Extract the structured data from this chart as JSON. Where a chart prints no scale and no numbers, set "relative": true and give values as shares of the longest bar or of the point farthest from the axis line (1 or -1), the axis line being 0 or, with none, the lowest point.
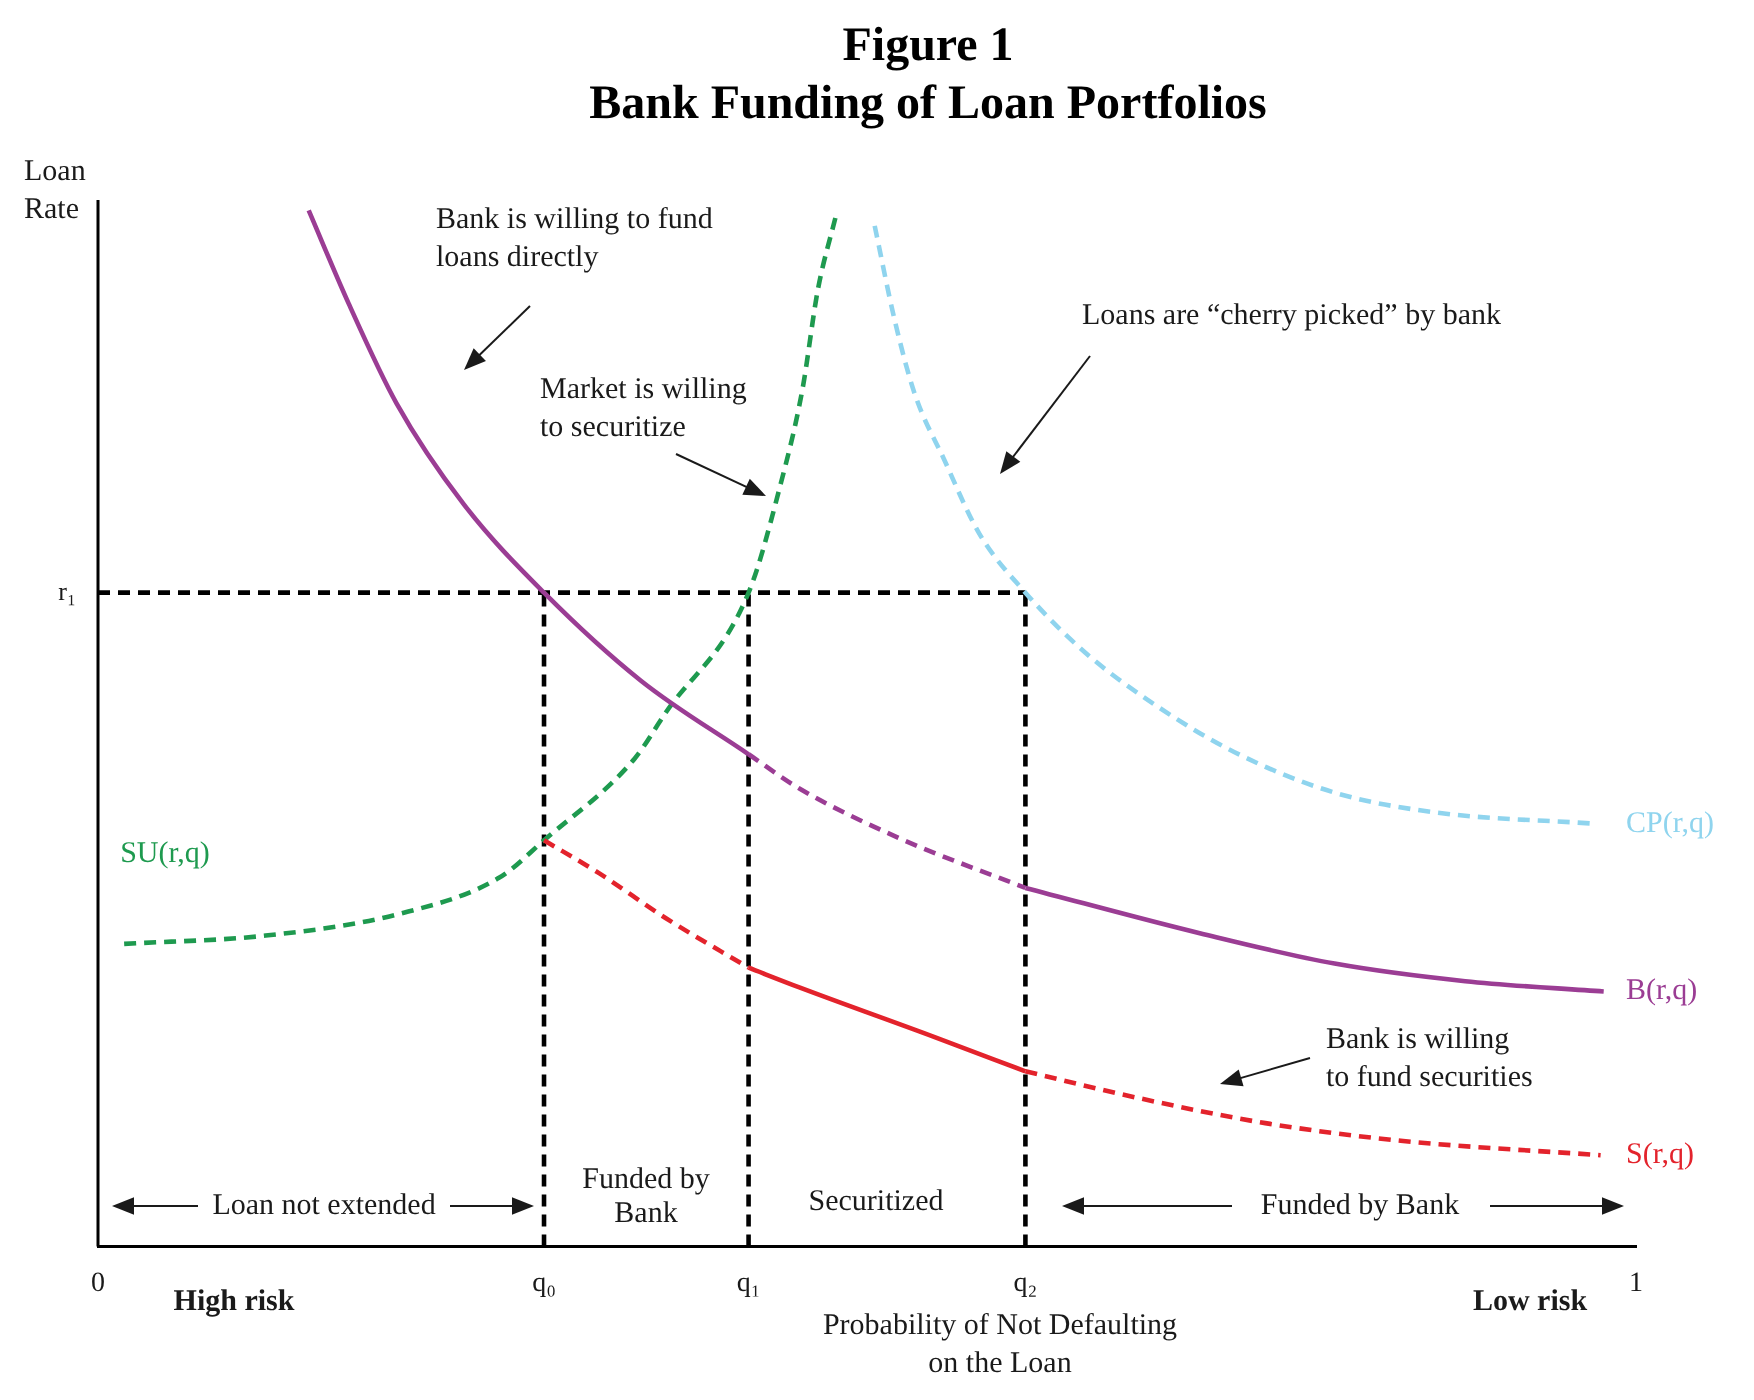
{
  "chart_data": {
    "type": "line",
    "title": "Figure 1",
    "subtitle": "Bank Funding of Loan Portfolios",
    "xlabel": "Probability of Not Defaulting on the Loan",
    "ylabel": "Loan Rate",
    "relative": true,
    "xlim": [
      0,
      1
    ],
    "xticks": [
      0,
      {
        "value": 0.29,
        "label": "q₀"
      },
      {
        "value": 0.423,
        "label": "q₁"
      },
      {
        "value": 0.603,
        "label": "q₂"
      },
      1
    ],
    "legend": false,
    "grid": false,
    "marker": "none",
    "series": [
      {
        "color": "#9b3d94",
        "line_style": "solid",
        "x": [
          0.137,
          0.163,
          0.194,
          0.238,
          0.29,
          0.353,
          0.423
        ],
        "values": [
          1.0,
          0.91,
          0.814,
          0.716,
          0.631,
          0.546,
          0.475
        ]
      },
      {
        "color": "#9b3d94",
        "line_style": "dashed",
        "x": [
          0.423,
          0.456,
          0.521,
          0.603
        ],
        "values": [
          0.475,
          0.442,
          0.394,
          0.346
        ]
      },
      {
        "name": "B(r,q)",
        "color": "#9b3d94",
        "line_style": "solid",
        "x": [
          0.603,
          0.717,
          0.804,
          0.889,
          0.979
        ],
        "values": [
          0.346,
          0.302,
          0.273,
          0.256,
          0.246
        ]
      },
      {
        "color": "#e3232c",
        "line_style": "dashed",
        "x": [
          0.29,
          0.326,
          0.369,
          0.423
        ],
        "values": [
          0.392,
          0.36,
          0.317,
          0.269
        ]
      },
      {
        "color": "#e3232c",
        "line_style": "solid",
        "x": [
          0.423,
          0.456,
          0.544,
          0.603
        ],
        "values": [
          0.269,
          0.25,
          0.202,
          0.169
        ]
      },
      {
        "name": "S(r,q)",
        "color": "#e3232c",
        "line_style": "dashed",
        "x": [
          0.603,
          0.674,
          0.759,
          0.847,
          0.977
        ],
        "values": [
          0.169,
          0.144,
          0.119,
          0.102,
          0.088
        ]
      },
      {
        "name": "SU(r,q)",
        "color": "#1e9a4f",
        "line_style": "dashed",
        "x": [
          0.017,
          0.109,
          0.196,
          0.261,
          0.29,
          0.349,
          0.369,
          0.423,
          0.443,
          0.458,
          0.468,
          0.48
        ],
        "values": [
          0.292,
          0.3,
          0.321,
          0.356,
          0.392,
          0.471,
          0.515,
          0.631,
          0.731,
          0.827,
          0.923,
          0.996
        ]
      },
      {
        "name": "CP(r,q)",
        "color": "#8fd4ee",
        "line_style": "dashed",
        "x": [
          0.505,
          0.518,
          0.531,
          0.55,
          0.573,
          0.603,
          0.642,
          0.687,
          0.739,
          0.804,
          0.869,
          0.973
        ],
        "values": [
          0.985,
          0.894,
          0.823,
          0.76,
          0.688,
          0.631,
          0.573,
          0.523,
          0.477,
          0.438,
          0.419,
          0.408
        ]
      },
      {
        "color": "#000000",
        "line_style": "dashed",
        "x": [
          0,
          0.603
        ],
        "values": [
          0.631,
          0.631
        ]
      },
      {
        "color": "#000000",
        "line_style": "dashed",
        "x": [
          0.29,
          0.29
        ],
        "values": [
          0,
          0.631
        ]
      },
      {
        "color": "#000000",
        "line_style": "dashed",
        "x": [
          0.423,
          0.423
        ],
        "values": [
          0,
          0.631
        ]
      },
      {
        "color": "#000000",
        "line_style": "dashed",
        "x": [
          0.603,
          0.603
        ],
        "values": [
          0,
          0.631
        ]
      }
    ],
    "annotations": [
      {
        "text": "r₁",
        "x": 0,
        "y": 0.631
      },
      "Bank is willing to fund loans directly",
      "Market is willing to securitize",
      "Loans are “cherry picked” by bank",
      "Bank is willing to fund securities",
      "Loan not extended",
      "Funded by Bank",
      "Securitized",
      "Funded by Bank",
      "High risk",
      "Low risk"
    ]
  }
}
